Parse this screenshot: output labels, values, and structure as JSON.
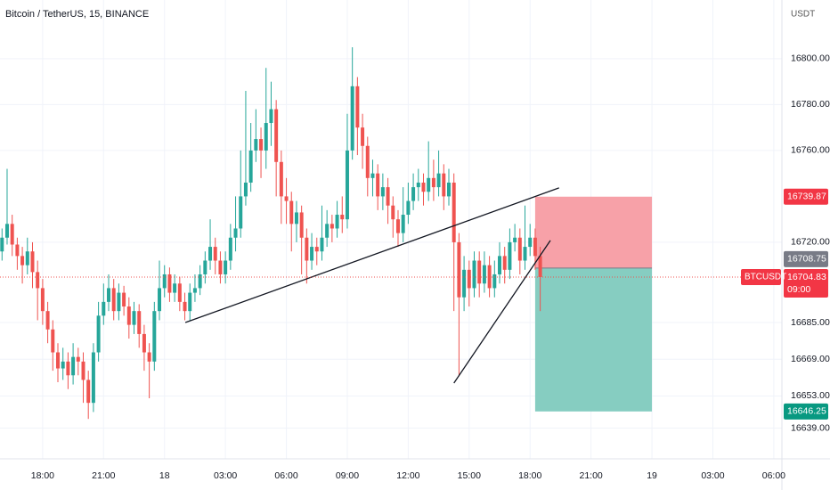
{
  "chart_data": {
    "type": "candlestick",
    "title": "Bitcoin / TetherUS, 15, BINANCE",
    "y_unit": "USDT",
    "up_color": "#26a69a",
    "down_color": "#ef5350",
    "x": [
      -8,
      -7,
      -6,
      -5,
      -4,
      -3,
      -2,
      -1,
      0,
      1,
      2,
      3,
      4,
      5,
      6,
      7,
      8,
      9,
      10,
      11,
      12,
      13,
      14,
      15,
      16,
      17,
      18,
      19,
      20,
      21,
      22,
      23,
      24,
      25,
      26,
      27,
      28,
      29,
      30,
      31,
      32,
      33,
      34,
      35,
      36,
      37,
      38,
      39,
      40,
      41,
      42,
      43,
      44,
      45,
      46,
      47,
      48,
      49,
      50,
      51,
      52,
      53,
      54,
      55,
      56,
      57,
      58,
      59,
      60,
      61,
      62,
      63,
      64,
      65,
      66,
      67,
      68,
      69,
      70,
      71,
      72,
      73,
      74,
      75,
      76,
      77,
      78,
      79,
      80,
      81,
      82,
      83,
      84,
      85,
      86,
      87,
      88,
      89,
      90,
      91,
      92,
      93,
      94,
      95,
      96,
      97,
      98
    ],
    "open": [
      16716,
      16722,
      16728,
      16719,
      16714,
      16710,
      16716,
      16707,
      16700,
      16690,
      16682,
      16672,
      16665,
      16668,
      16662,
      16670,
      16668,
      16660,
      16650,
      16672,
      16688,
      16694,
      16700,
      16690,
      16698,
      16692,
      16684,
      16690,
      16680,
      16672,
      16668,
      16690,
      16700,
      16706,
      16698,
      16702,
      16694,
      16690,
      16698,
      16700,
      16706,
      16712,
      16718,
      16712,
      16706,
      16712,
      16722,
      16726,
      16740,
      16746,
      16760,
      16765,
      16760,
      16772,
      16778,
      16755,
      16740,
      16738,
      16728,
      16733,
      16722,
      16712,
      16718,
      16716,
      16722,
      16728,
      16726,
      16732,
      16730,
      16760,
      16788,
      16770,
      16762,
      16748,
      16750,
      16740,
      16744,
      16736,
      16730,
      16724,
      16732,
      16738,
      16744,
      16746,
      16742,
      16748,
      16744,
      16750,
      16740,
      16746,
      16720,
      16696,
      16708,
      16700,
      16712,
      16702,
      16710,
      16700,
      16706,
      16714,
      16708,
      16720,
      16722,
      16712,
      16718,
      16722,
      16714
    ],
    "high": [
      16726,
      16752,
      16732,
      16722,
      16718,
      16722,
      16720,
      16712,
      16704,
      16694,
      16686,
      16676,
      16674,
      16672,
      16676,
      16674,
      16672,
      16664,
      16676,
      16694,
      16702,
      16706,
      16704,
      16702,
      16701,
      16696,
      16694,
      16693,
      16684,
      16676,
      16694,
      16712,
      16710,
      16709,
      16706,
      16705,
      16698,
      16702,
      16706,
      16710,
      16716,
      16730,
      16722,
      16716,
      16716,
      16728,
      16740,
      16760,
      16786,
      16772,
      16778,
      16770,
      16796,
      16790,
      16782,
      16760,
      16748,
      16742,
      16738,
      16736,
      16726,
      16724,
      16722,
      16736,
      16734,
      16732,
      16738,
      16740,
      16776,
      16805,
      16792,
      16776,
      16766,
      16756,
      16754,
      16750,
      16748,
      16740,
      16734,
      16744,
      16746,
      16750,
      16752,
      16750,
      16764,
      16756,
      16760,
      16754,
      16752,
      16750,
      16724,
      16714,
      16712,
      16716,
      16716,
      16716,
      16714,
      16712,
      16720,
      16718,
      16726,
      16728,
      16726,
      16736,
      16728,
      16726,
      16718
    ],
    "low": [
      16712,
      16719,
      16714,
      16708,
      16702,
      16706,
      16700,
      16686,
      16684,
      16676,
      16664,
      16659,
      16660,
      16656,
      16658,
      16662,
      16650,
      16643,
      16646,
      16668,
      16684,
      16690,
      16686,
      16686,
      16688,
      16678,
      16680,
      16674,
      16664,
      16652,
      16664,
      16686,
      16696,
      16694,
      16694,
      16690,
      16686,
      16686,
      16694,
      16697,
      16702,
      16708,
      16706,
      16702,
      16702,
      16708,
      16716,
      16722,
      16736,
      16742,
      16755,
      16748,
      16752,
      16762,
      16740,
      16728,
      16728,
      16716,
      16720,
      16706,
      16702,
      16708,
      16710,
      16712,
      16718,
      16720,
      16722,
      16724,
      16726,
      16756,
      16758,
      16752,
      16740,
      16740,
      16734,
      16734,
      16728,
      16722,
      16718,
      16720,
      16728,
      16734,
      16738,
      16736,
      16738,
      16738,
      16740,
      16734,
      16736,
      16690,
      16662,
      16690,
      16692,
      16696,
      16696,
      16698,
      16696,
      16696,
      16702,
      16702,
      16704,
      16716,
      16706,
      16708,
      16714,
      16708,
      16690
    ],
    "close": [
      16722,
      16728,
      16719,
      16714,
      16710,
      16716,
      16707,
      16700,
      16690,
      16682,
      16672,
      16665,
      16668,
      16662,
      16670,
      16668,
      16660,
      16650,
      16672,
      16688,
      16694,
      16700,
      16690,
      16698,
      16692,
      16684,
      16690,
      16680,
      16672,
      16668,
      16690,
      16700,
      16706,
      16698,
      16702,
      16694,
      16690,
      16698,
      16700,
      16706,
      16712,
      16718,
      16712,
      16706,
      16712,
      16722,
      16726,
      16740,
      16746,
      16760,
      16765,
      16760,
      16772,
      16778,
      16755,
      16740,
      16738,
      16728,
      16733,
      16722,
      16712,
      16718,
      16716,
      16722,
      16728,
      16726,
      16732,
      16730,
      16760,
      16788,
      16770,
      16762,
      16748,
      16750,
      16740,
      16744,
      16736,
      16730,
      16724,
      16732,
      16738,
      16744,
      16746,
      16742,
      16748,
      16744,
      16750,
      16740,
      16746,
      16720,
      16696,
      16708,
      16700,
      16712,
      16702,
      16710,
      16700,
      16706,
      16714,
      16708,
      16720,
      16722,
      16712,
      16718,
      16722,
      16714,
      16704.83
    ],
    "xlim": [
      -8.4,
      145.6
    ],
    "xticks": [
      {
        "value": 0,
        "label": "18:00"
      },
      {
        "value": 12,
        "label": "21:00"
      },
      {
        "value": 24,
        "label": "18"
      },
      {
        "value": 36,
        "label": "03:00"
      },
      {
        "value": 48,
        "label": "06:00"
      },
      {
        "value": 60,
        "label": "09:00"
      },
      {
        "value": 72,
        "label": "12:00"
      },
      {
        "value": 84,
        "label": "15:00"
      },
      {
        "value": 96,
        "label": "18:00"
      },
      {
        "value": 108,
        "label": "21:00"
      },
      {
        "value": 120,
        "label": "19"
      },
      {
        "value": 132,
        "label": "03:00"
      },
      {
        "value": 144,
        "label": "06:00"
      }
    ],
    "ylim": [
      16625.6,
      16825.6
    ],
    "yticks": [
      {
        "value": 16800,
        "label": "16800.00"
      },
      {
        "value": 16780,
        "label": "16780.00"
      },
      {
        "value": 16760,
        "label": "16760.00"
      },
      {
        "value": 16720,
        "label": "16720.00"
      },
      {
        "value": 16685,
        "label": "16685.00"
      },
      {
        "value": 16669,
        "label": "16669.00"
      },
      {
        "value": 16653,
        "label": "16653.00"
      },
      {
        "value": 16639,
        "label": "16639.00"
      }
    ],
    "grid": true,
    "trendlines": [
      {
        "x": [
          28.1,
          101.7
        ],
        "y": [
          16685,
          16743.7
        ]
      },
      {
        "x": [
          81,
          100
        ],
        "y": [
          16658.6,
          16720.8
        ]
      }
    ],
    "position": {
      "x": [
        97,
        120
      ],
      "entry": 16708.75,
      "stop": 16739.87,
      "target": 16646.25
    },
    "last_price": {
      "name": "BTCUSDT",
      "value": 16704.83,
      "countdown": "09:00"
    }
  }
}
